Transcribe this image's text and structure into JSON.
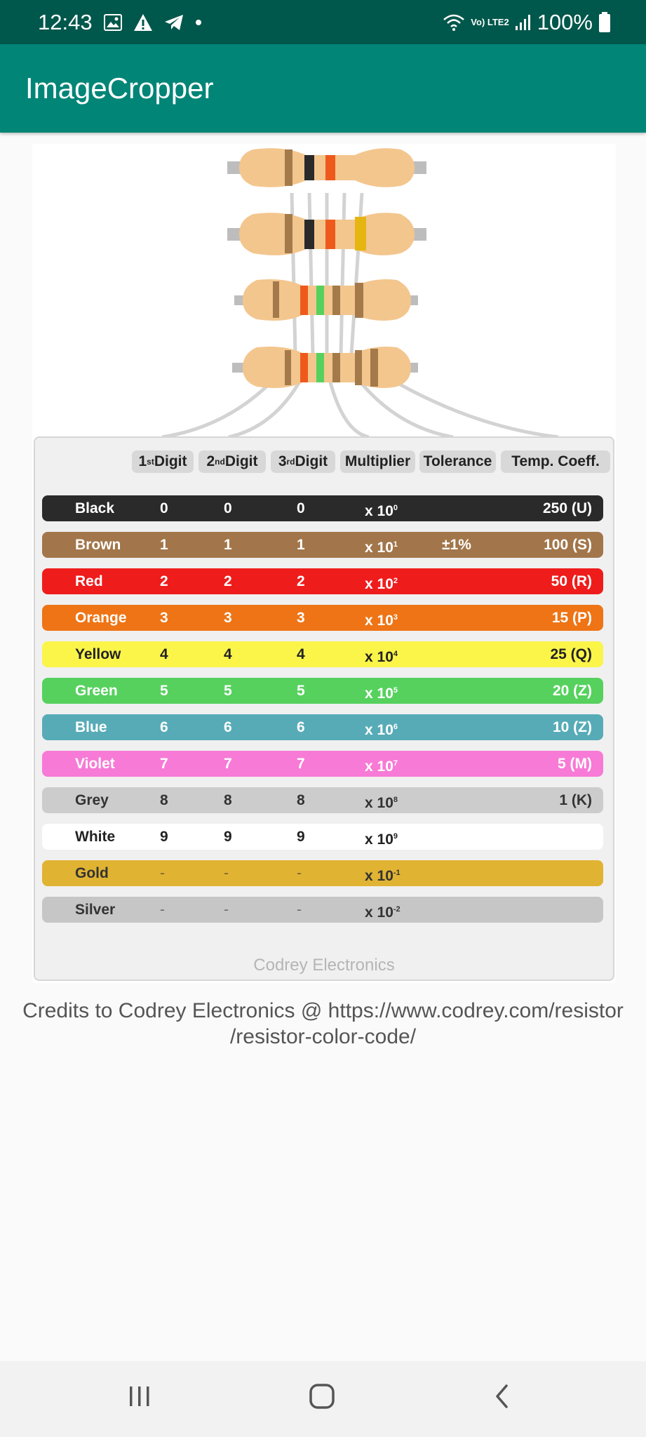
{
  "status_bar": {
    "time": "12:43",
    "battery": "100%",
    "network_label": "Vo) LTE2",
    "icons": [
      "image-icon",
      "warning-icon",
      "telegram-icon",
      "dot-icon",
      "wifi-icon",
      "signal-icon",
      "battery-icon"
    ]
  },
  "app_bar": {
    "title": "ImageCropper"
  },
  "figure": {
    "headers": [
      {
        "base": "1",
        "sup": "st",
        "rest": " Digit"
      },
      {
        "base": "2",
        "sup": "nd",
        "rest": " Digit"
      },
      {
        "base": "3",
        "sup": "rd",
        "rest": " Digit"
      },
      {
        "base": "Multiplier",
        "sup": "",
        "rest": ""
      },
      {
        "base": "Tolerance",
        "sup": "",
        "rest": ""
      },
      {
        "base": "Temp. Coeff.",
        "sup": "",
        "rest": ""
      }
    ],
    "rows": [
      {
        "name": "Black",
        "d1": "0",
        "d2": "0",
        "d3": "0",
        "mult_base": "x 10",
        "mult_exp": "0",
        "tol": "",
        "temp": "250 (U)",
        "bg": "#2a2a2a",
        "fg": "#ffffff"
      },
      {
        "name": "Brown",
        "d1": "1",
        "d2": "1",
        "d3": "1",
        "mult_base": "x 10",
        "mult_exp": "1",
        "tol": "±1%",
        "temp": "100 (S)",
        "bg": "#a2764a",
        "fg": "#ffffff"
      },
      {
        "name": "Red",
        "d1": "2",
        "d2": "2",
        "d3": "2",
        "mult_base": "x 10",
        "mult_exp": "2",
        "tol": "",
        "temp": "50 (R)",
        "bg": "#ef1c1c",
        "fg": "#ffffff"
      },
      {
        "name": "Orange",
        "d1": "3",
        "d2": "3",
        "d3": "3",
        "mult_base": "x 10",
        "mult_exp": "3",
        "tol": "",
        "temp": "15 (P)",
        "bg": "#ee7415",
        "fg": "#ffffff"
      },
      {
        "name": "Yellow",
        "d1": "4",
        "d2": "4",
        "d3": "4",
        "mult_base": "x 10",
        "mult_exp": "4",
        "tol": "",
        "temp": "25 (Q)",
        "bg": "#fbf54a",
        "fg": "#222222"
      },
      {
        "name": "Green",
        "d1": "5",
        "d2": "5",
        "d3": "5",
        "mult_base": "x 10",
        "mult_exp": "5",
        "tol": "",
        "temp": "20 (Z)",
        "bg": "#56d15e",
        "fg": "#ffffff"
      },
      {
        "name": "Blue",
        "d1": "6",
        "d2": "6",
        "d3": "6",
        "mult_base": "x 10",
        "mult_exp": "6",
        "tol": "",
        "temp": "10 (Z)",
        "bg": "#57abb7",
        "fg": "#ffffff"
      },
      {
        "name": "Violet",
        "d1": "7",
        "d2": "7",
        "d3": "7",
        "mult_base": "x 10",
        "mult_exp": "7",
        "tol": "",
        "temp": "5 (M)",
        "bg": "#f77ad6",
        "fg": "#ffffff"
      },
      {
        "name": "Grey",
        "d1": "8",
        "d2": "8",
        "d3": "8",
        "mult_base": "x 10",
        "mult_exp": "8",
        "tol": "",
        "temp": "1 (K)",
        "bg": "#cccccc",
        "fg": "#333333"
      },
      {
        "name": "White",
        "d1": "9",
        "d2": "9",
        "d3": "9",
        "mult_base": "x 10",
        "mult_exp": "9",
        "tol": "",
        "temp": "",
        "bg": "#ffffff",
        "fg": "#222222"
      },
      {
        "name": "Gold",
        "d1": "-",
        "d2": "-",
        "d3": "-",
        "mult_base": "x 10",
        "mult_exp": "-1",
        "tol": "",
        "temp": "",
        "bg": "#e0b332",
        "fg": "#333333"
      },
      {
        "name": "Silver",
        "d1": "-",
        "d2": "-",
        "d3": "-",
        "mult_base": "x 10",
        "mult_exp": "-2",
        "tol": "",
        "temp": "",
        "bg": "#c6c6c6",
        "fg": "#333333"
      }
    ],
    "watermark": "Codrey Electronics"
  },
  "credits": {
    "line1": "Credits to Codrey Electronics @ https://www.codrey.com/resistor",
    "line2": "/resistor-color-code/"
  },
  "nav_bar": {
    "icons": [
      "recents-icon",
      "home-icon",
      "back-icon"
    ]
  }
}
